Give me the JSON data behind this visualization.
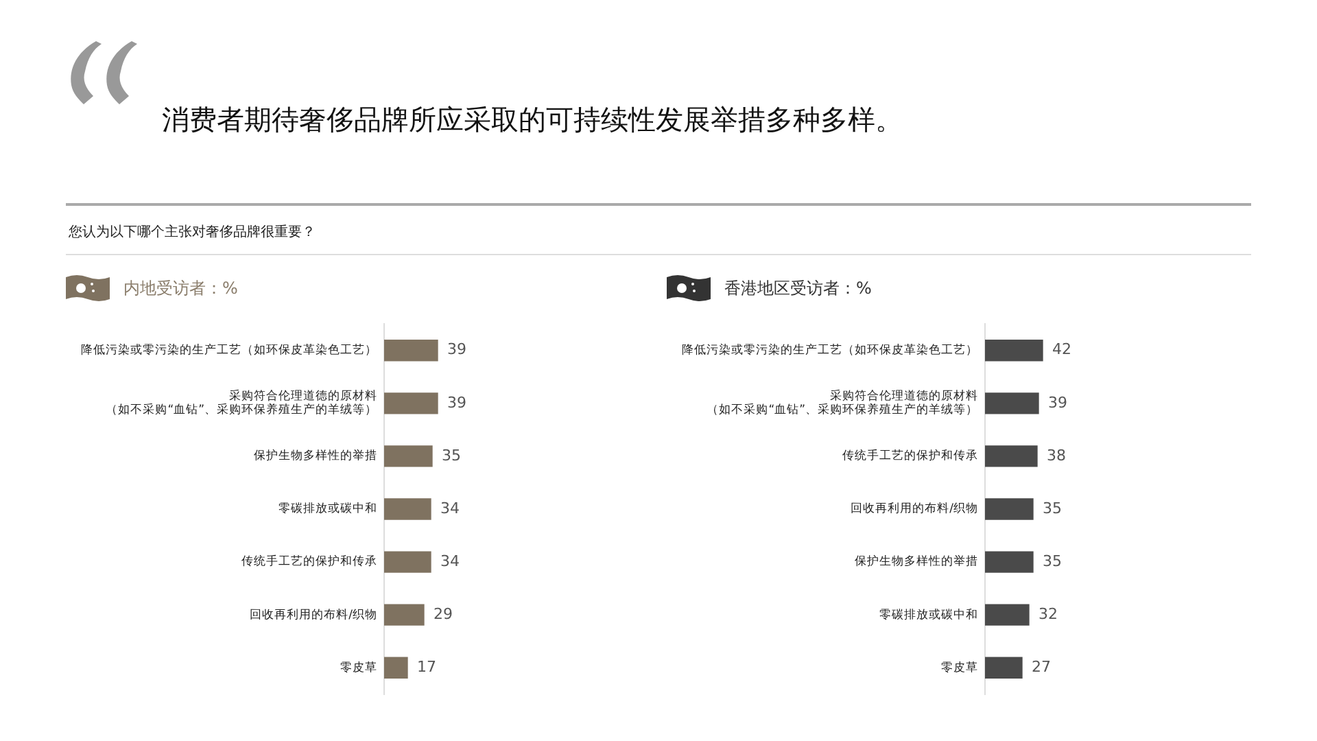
{
  "chart_data": [
    {
      "type": "bar",
      "orientation": "horizontal",
      "title": "内地受访者：%",
      "annotations": [
        "消费者期待奢侈品牌所应采取的可持续性发展举措多种多样。",
        "您认为以下哪个主张对奢侈品牌很重要？"
      ],
      "categories": [
        "降低污染或零污染的生产工艺（如环保皮革染色工艺）",
        "采购符合伦理道德的原材料（如不采购“血钻”、采购环保养殖生产的羊绒等）",
        "保护生物多样性的举措",
        "零碳排放或碳中和",
        "传统手工艺的保护和传承",
        "回收再利用的布料/织物",
        "零皮草"
      ],
      "values": [
        39,
        39,
        35,
        34,
        34,
        29,
        17
      ],
      "color": "#7f7260",
      "tick_labels": "y",
      "data_labels": true,
      "legend": false
    },
    {
      "type": "bar",
      "orientation": "horizontal",
      "title": "香港地区受访者：%",
      "categories": [
        "降低污染或零污染的生产工艺（如环保皮革染色工艺）",
        "采购符合伦理道德的原材料（如不采购“血钻”、采购环保养殖生产的羊绒等）",
        "传统手工艺的保护和传承",
        "回收再利用的布料/织物",
        "保护生物多样性的举措",
        "零碳排放或碳中和",
        "零皮草"
      ],
      "values": [
        42,
        39,
        38,
        35,
        35,
        32,
        27
      ],
      "color": "#4a4a4a",
      "tick_labels": "y",
      "data_labels": true,
      "legend": false
    }
  ]
}
